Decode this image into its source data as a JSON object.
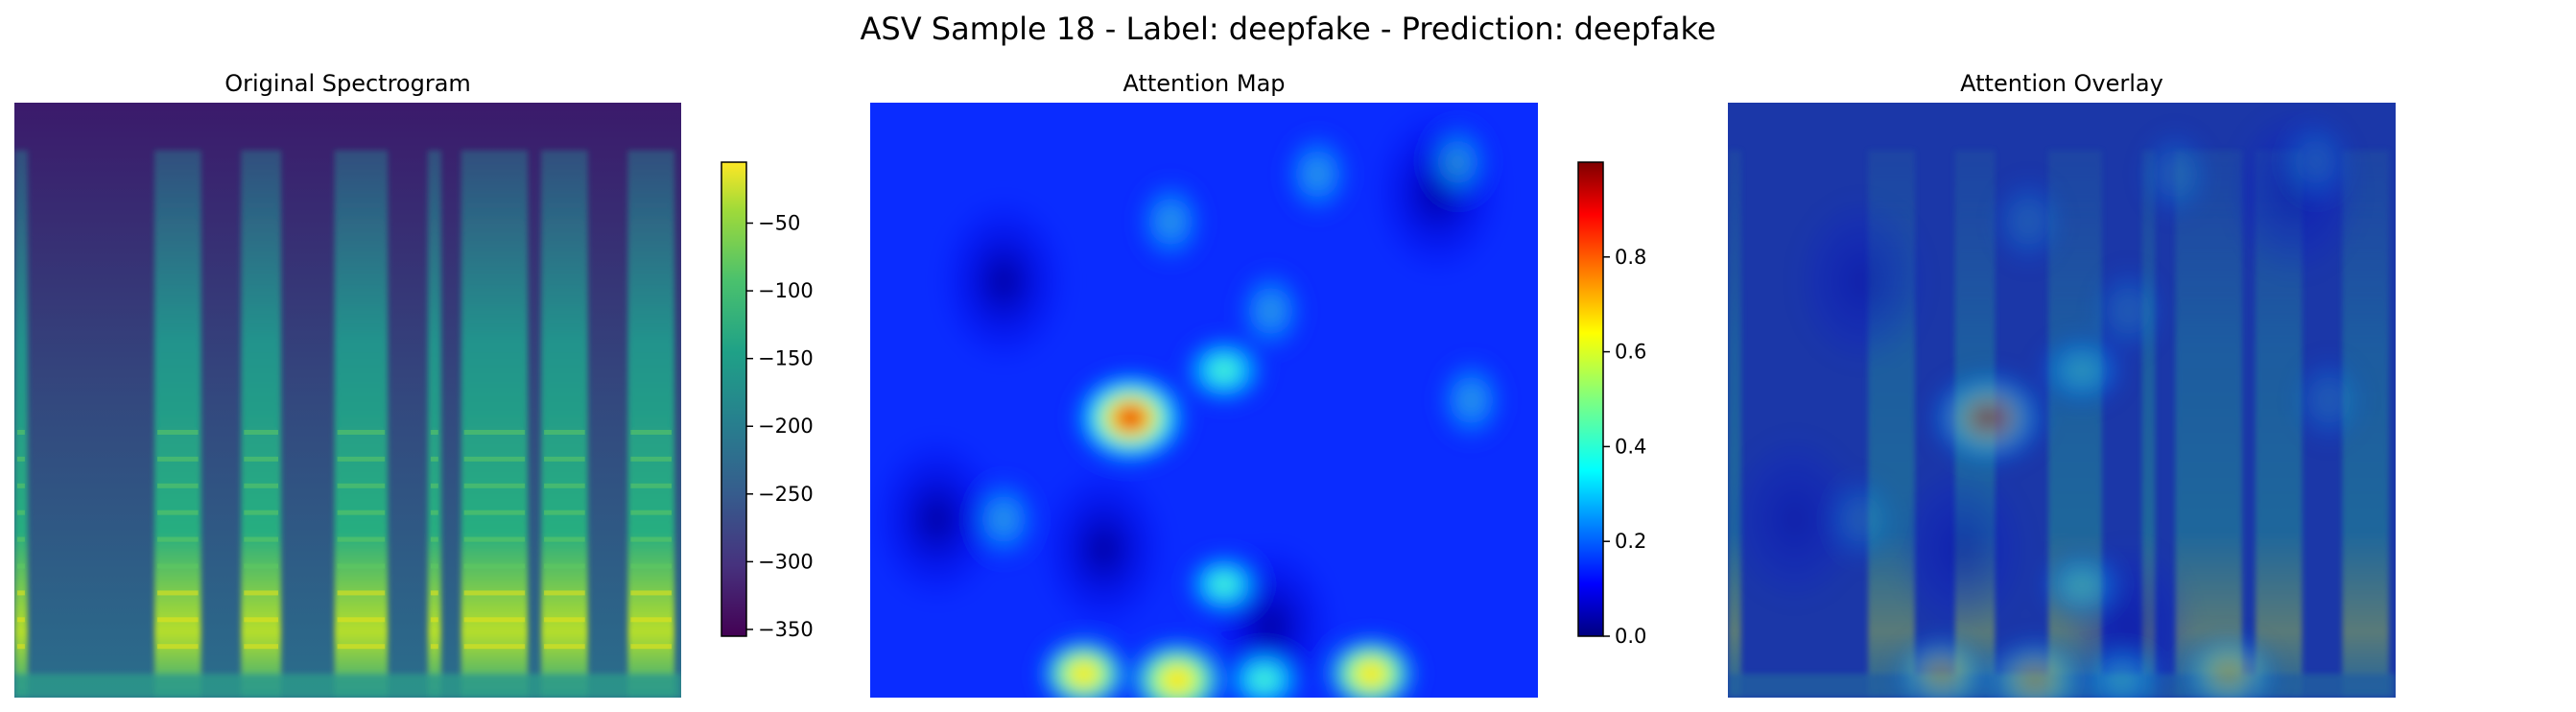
{
  "figure": {
    "title": "ASV Sample 18 - Label: deepfake - Prediction: deepfake"
  },
  "chart_data": [
    {
      "type": "heatmap",
      "title": "Original Spectrogram",
      "xlabel": "",
      "ylabel": "",
      "axes_visible": false,
      "colormap": "viridis",
      "description_of_values": "log-power spectrogram (dB), bright vertical voiced segments with harmonic striations",
      "colorbar": {
        "range": [
          -355,
          -5
        ],
        "ticks": [
          -50,
          -100,
          -150,
          -200,
          -250,
          -300,
          -350
        ],
        "tick_labels": [
          "−50",
          "−100",
          "−150",
          "−200",
          "−250",
          "−300",
          "−350"
        ]
      }
    },
    {
      "type": "heatmap",
      "title": "Attention Map",
      "xlabel": "",
      "ylabel": "",
      "axes_visible": false,
      "colormap": "jet",
      "hotspots": [
        {
          "x": 0.39,
          "y": 0.53,
          "value": 1.0
        },
        {
          "x": 0.46,
          "y": 0.97,
          "value": 0.75
        },
        {
          "x": 0.32,
          "y": 0.96,
          "value": 0.6
        },
        {
          "x": 0.75,
          "y": 0.96,
          "value": 0.65
        },
        {
          "x": 0.53,
          "y": 0.45,
          "value": 0.5
        },
        {
          "x": 0.59,
          "y": 0.97,
          "value": 0.45
        },
        {
          "x": 0.53,
          "y": 0.81,
          "value": 0.4
        }
      ],
      "colorbar": {
        "range": [
          0.0,
          1.0
        ],
        "ticks": [
          0.0,
          0.2,
          0.4,
          0.6,
          0.8
        ],
        "tick_labels": [
          "0.0",
          "0.2",
          "0.4",
          "0.6",
          "0.8"
        ]
      }
    },
    {
      "type": "heatmap",
      "title": "Attention Overlay",
      "xlabel": "",
      "ylabel": "",
      "axes_visible": false,
      "description_of_values": "spectrogram blended with jet attention map"
    }
  ]
}
